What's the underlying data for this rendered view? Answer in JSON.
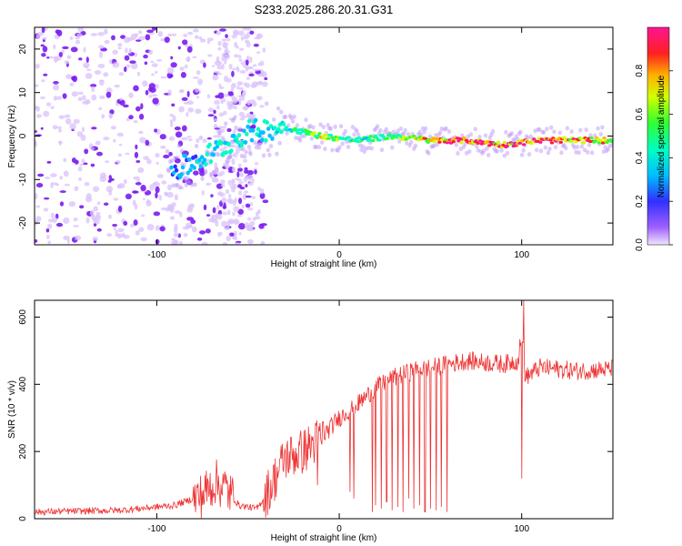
{
  "title": "S233.2025.286.20.31.G31",
  "colors": {
    "snr_line": "#ee3333",
    "ridge": "#33cc99",
    "axis": "#000000"
  },
  "chart_data": [
    {
      "type": "heatmap",
      "title": "S233.2025.286.20.31.G31",
      "xlabel": "Height of straight line (km)",
      "ylabel": "Frequency (Hz)",
      "xlim": [
        -167,
        150
      ],
      "ylim": [
        -25,
        25
      ],
      "x_ticks": [
        -100,
        0,
        100
      ],
      "y_ticks": [
        -20,
        -10,
        0,
        10,
        20
      ],
      "colorbar": {
        "label": "Normalized spectral amplitude",
        "range": [
          0,
          1
        ],
        "ticks": [
          0.0,
          0.2,
          0.4,
          0.6,
          0.8
        ],
        "colormap": "rainbow (purple-blue-cyan-green-yellow-red-pink)",
        "placement": "right"
      },
      "ridge": {
        "description": "signal concentrated near 0 Hz above ~-40 km",
        "x": [
          -90,
          -70,
          -50,
          -30,
          -10,
          10,
          30,
          50,
          70,
          90,
          110,
          150
        ],
        "freq": [
          -8,
          -4,
          1,
          2,
          0,
          -1,
          0,
          -1,
          -1,
          -2,
          -1,
          -1
        ],
        "amplitude": [
          0.2,
          0.3,
          0.3,
          0.35,
          0.55,
          0.4,
          0.45,
          0.7,
          0.8,
          0.75,
          0.85,
          0.6
        ]
      },
      "noise_region": {
        "x_from": -167,
        "x_to": -40,
        "amplitude": 0.1
      }
    },
    {
      "type": "line",
      "xlabel": "Height of straight line (km)",
      "ylabel": "SNR (10 * v/v)",
      "xlim": [
        -167,
        150
      ],
      "ylim": [
        0,
        650
      ],
      "x_ticks": [
        -100,
        0,
        100
      ],
      "y_ticks": [
        0,
        200,
        400,
        600
      ],
      "trend": {
        "x": [
          -167,
          -120,
          -90,
          -75,
          -68,
          -62,
          -55,
          -45,
          -38,
          -30,
          -20,
          -10,
          0,
          10,
          20,
          30,
          40,
          50,
          60,
          70,
          80,
          90,
          98,
          100,
          102,
          110,
          130,
          150
        ],
        "y": [
          20,
          25,
          40,
          70,
          110,
          90,
          40,
          30,
          90,
          180,
          200,
          240,
          300,
          340,
          390,
          420,
          440,
          450,
          460,
          470,
          465,
          460,
          470,
          560,
          420,
          450,
          440,
          445
        ]
      },
      "dips": [
        {
          "x": 18,
          "y": 20
        },
        {
          "x": 20,
          "y": 40
        },
        {
          "x": 23,
          "y": 30
        },
        {
          "x": 26,
          "y": 50
        },
        {
          "x": 29,
          "y": 25
        },
        {
          "x": 32,
          "y": 35
        },
        {
          "x": 35,
          "y": 20
        },
        {
          "x": 38,
          "y": 60
        },
        {
          "x": 41,
          "y": 30
        },
        {
          "x": 44,
          "y": 40
        },
        {
          "x": 47,
          "y": 20
        },
        {
          "x": 50,
          "y": 30
        },
        {
          "x": 53,
          "y": 25
        },
        {
          "x": 56,
          "y": 35
        },
        {
          "x": 59,
          "y": 20
        },
        {
          "x": 6,
          "y": 80
        },
        {
          "x": 8,
          "y": 60
        },
        {
          "x": -12,
          "y": 100
        },
        {
          "x": 100,
          "y": 120
        }
      ],
      "peak": {
        "x": 101,
        "y": 650
      }
    }
  ]
}
